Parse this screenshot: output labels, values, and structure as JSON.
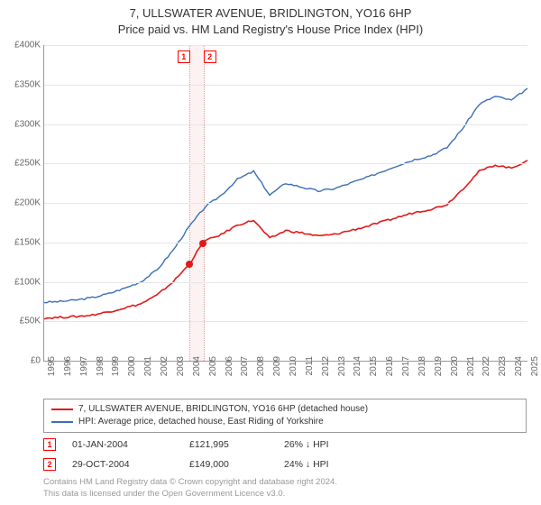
{
  "title": {
    "line1": "7, ULLSWATER AVENUE, BRIDLINGTON, YO16 6HP",
    "line2": "Price paid vs. HM Land Registry's House Price Index (HPI)"
  },
  "chart": {
    "type": "line",
    "background_color": "#ffffff",
    "grid_color": "#e6e6e6",
    "axis_color": "#999999",
    "x_years": [
      1995,
      1996,
      1997,
      1998,
      1999,
      2000,
      2001,
      2002,
      2003,
      2004,
      2005,
      2006,
      2007,
      2008,
      2009,
      2010,
      2011,
      2012,
      2013,
      2014,
      2015,
      2016,
      2017,
      2018,
      2019,
      2020,
      2021,
      2022,
      2023,
      2024,
      2025
    ],
    "y_min": 0,
    "y_max": 400000,
    "y_step": 50000,
    "y_tick_labels": [
      "£0",
      "£50K",
      "£100K",
      "£150K",
      "£200K",
      "£250K",
      "£300K",
      "£350K",
      "£400K"
    ],
    "label_fontsize": 10,
    "series": [
      {
        "name": "HPI: Average price, detached house, East Riding of Yorkshire",
        "color": "#3b6fb6",
        "line_width": 1.4,
        "values_by_year": {
          "1995": 74000,
          "1996": 75000,
          "1997": 77000,
          "1998": 80000,
          "1999": 85000,
          "2000": 92000,
          "2001": 100000,
          "2002": 115000,
          "2003": 140000,
          "2004": 170000,
          "2005": 195000,
          "2006": 210000,
          "2007": 230000,
          "2008": 240000,
          "2009": 210000,
          "2010": 225000,
          "2011": 220000,
          "2012": 215000,
          "2013": 218000,
          "2014": 225000,
          "2015": 232000,
          "2016": 240000,
          "2017": 248000,
          "2018": 255000,
          "2019": 260000,
          "2020": 270000,
          "2021": 295000,
          "2022": 325000,
          "2023": 335000,
          "2024": 330000,
          "2025": 345000
        }
      },
      {
        "name": "7, ULLSWATER AVENUE, BRIDLINGTON, YO16 6HP (detached house)",
        "color": "#e11919",
        "line_width": 1.6,
        "values_by_year": {
          "1995": 54000,
          "1996": 55000,
          "1997": 56000,
          "1998": 58000,
          "1999": 62000,
          "2000": 67000,
          "2001": 72000,
          "2002": 83000,
          "2003": 100000,
          "2004": 122000,
          "2004.83": 149000,
          "2005": 152000,
          "2006": 160000,
          "2007": 172000,
          "2008": 178000,
          "2009": 155000,
          "2010": 165000,
          "2011": 162000,
          "2012": 158000,
          "2013": 160000,
          "2014": 165000,
          "2015": 170000,
          "2016": 176000,
          "2017": 182000,
          "2018": 188000,
          "2019": 192000,
          "2020": 198000,
          "2021": 218000,
          "2022": 240000,
          "2023": 248000,
          "2024": 244000,
          "2025": 254000
        }
      }
    ],
    "event_band": {
      "start_year": 2004.0,
      "end_year": 2004.83,
      "fill_color": "#fdf2f2",
      "border_color": "#d8a0a0"
    },
    "event_markers": [
      {
        "idx": "1",
        "year": 2004.0,
        "value": 121995
      },
      {
        "idx": "2",
        "year": 2004.83,
        "value": 149000
      }
    ],
    "event_marker_style": {
      "box_border": "#ff0000",
      "box_bg": "#ffffff",
      "dot_color": "#e11919",
      "dot_radius": 4
    }
  },
  "legend": {
    "items": [
      {
        "color": "#e11919",
        "label": "7, ULLSWATER AVENUE, BRIDLINGTON, YO16 6HP (detached house)"
      },
      {
        "color": "#3b6fb6",
        "label": "HPI: Average price, detached house, East Riding of Yorkshire"
      }
    ]
  },
  "sales": [
    {
      "idx": "1",
      "date": "01-JAN-2004",
      "price": "£121,995",
      "delta": "26% ↓ HPI"
    },
    {
      "idx": "2",
      "date": "29-OCT-2004",
      "price": "£149,000",
      "delta": "24% ↓ HPI"
    }
  ],
  "footer": {
    "line1": "Contains HM Land Registry data © Crown copyright and database right 2024.",
    "line2": "This data is licensed under the Open Government Licence v3.0."
  }
}
